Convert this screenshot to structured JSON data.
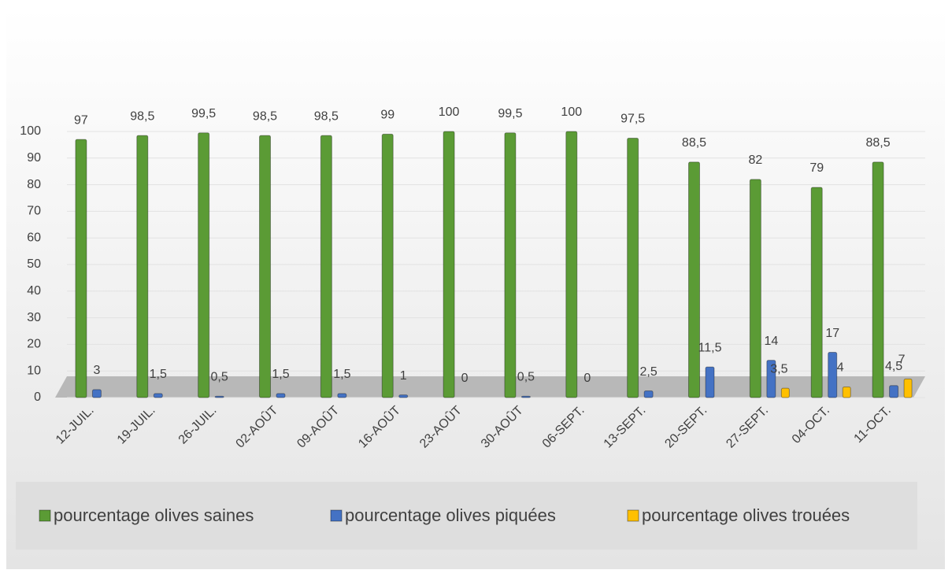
{
  "chart_data": {
    "type": "bar",
    "categories": [
      "12-JUIL.",
      "19-JUIL.",
      "26-JUIL.",
      "02-AOÛT",
      "09-AOÛT",
      "16-AOÛT",
      "23-AOÛT",
      "30-AOÛT",
      "06-SEPT.",
      "13-SEPT.",
      "20-SEPT.",
      "27-SEPT.",
      "04-OCT.",
      "11-OCT."
    ],
    "series": [
      {
        "name": "pourcentage olives saines",
        "color": "#5b9b35",
        "values": [
          97,
          98.5,
          99.5,
          98.5,
          98.5,
          99,
          100,
          99.5,
          100,
          97.5,
          88.5,
          82,
          79,
          88.5
        ],
        "value_labels": [
          "97",
          "98,5",
          "99,5",
          "98,5",
          "98,5",
          "99",
          "100",
          "99,5",
          "100",
          "97,5",
          "88,5",
          "82",
          "79",
          "88,5"
        ]
      },
      {
        "name": "pourcentage olives piquées",
        "color": "#4472c4",
        "values": [
          3,
          1.5,
          0.5,
          1.5,
          1.5,
          1,
          0,
          0.5,
          0,
          2.5,
          11.5,
          14,
          17,
          4.5
        ],
        "value_labels": [
          "3",
          "1,5",
          "0,5",
          "1,5",
          "1,5",
          "1",
          "0",
          "0,5",
          "0",
          "2,5",
          "11,5",
          "14",
          "17",
          "4,5"
        ]
      },
      {
        "name": "pourcentage olives trouées",
        "color": "#ffc000",
        "values": [
          null,
          null,
          null,
          null,
          null,
          null,
          null,
          null,
          null,
          null,
          null,
          3.5,
          4,
          7
        ],
        "value_labels": [
          null,
          null,
          null,
          null,
          null,
          null,
          null,
          null,
          null,
          null,
          null,
          "3,5",
          "4",
          "7"
        ]
      }
    ],
    "ylim": [
      0,
      100
    ],
    "yticks": [
      0,
      10,
      20,
      30,
      40,
      50,
      60,
      70,
      80,
      90,
      100
    ],
    "grid": true
  }
}
